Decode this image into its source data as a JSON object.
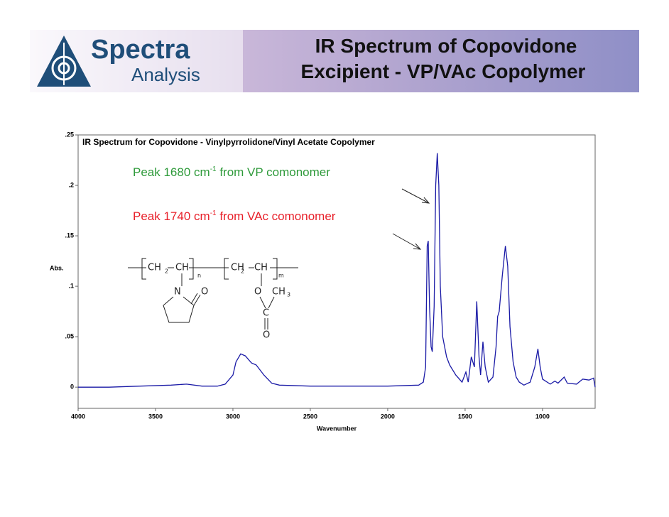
{
  "header": {
    "logo_top": "Spectra",
    "logo_bottom": "Analysis",
    "title_lines": [
      "IR Spectrum of Copovidone",
      "Excipient - VP/VAc Copolymer"
    ]
  },
  "chart_data": {
    "type": "line",
    "title": "IR Spectrum for Copovidone - Vinylpyrrolidone/Vinyl Acetate Copolymer",
    "x_label": "Wavenumber",
    "y_label": "Abs.",
    "xlim": [
      4000,
      660
    ],
    "xticks": [
      4000,
      3500,
      3000,
      2500,
      2000,
      1500,
      1000
    ],
    "ylim": [
      -0.021,
      0.25
    ],
    "yticks": [
      {
        "value": 0,
        "label": "0"
      },
      {
        "value": 0.05,
        "label": ".05"
      },
      {
        "value": 0.1,
        "label": ".1"
      },
      {
        "value": 0.15,
        "label": ".15"
      },
      {
        "value": 0.2,
        "label": ".2"
      },
      {
        "value": 0.25,
        "label": ".25"
      }
    ],
    "x": [
      4000,
      3800,
      3600,
      3400,
      3300,
      3200,
      3100,
      3050,
      3000,
      2980,
      2950,
      2920,
      2880,
      2850,
      2800,
      2750,
      2700,
      2500,
      2000,
      1800,
      1770,
      1755,
      1745,
      1738,
      1730,
      1720,
      1712,
      1700,
      1690,
      1680,
      1670,
      1660,
      1645,
      1620,
      1600,
      1560,
      1520,
      1495,
      1480,
      1460,
      1440,
      1425,
      1410,
      1400,
      1385,
      1370,
      1350,
      1320,
      1300,
      1290,
      1280,
      1260,
      1240,
      1225,
      1210,
      1190,
      1170,
      1150,
      1120,
      1080,
      1050,
      1030,
      1015,
      1000,
      950,
      920,
      900,
      860,
      840,
      780,
      740,
      700,
      670,
      660
    ],
    "series": [
      {
        "name": "Copovidone",
        "color": "#1a1aa6",
        "values": [
          0.0,
          0.0,
          0.001,
          0.002,
          0.003,
          0.001,
          0.001,
          0.003,
          0.012,
          0.025,
          0.033,
          0.031,
          0.024,
          0.022,
          0.012,
          0.004,
          0.002,
          0.001,
          0.001,
          0.002,
          0.005,
          0.02,
          0.14,
          0.145,
          0.08,
          0.04,
          0.035,
          0.08,
          0.2,
          0.232,
          0.2,
          0.1,
          0.05,
          0.03,
          0.022,
          0.012,
          0.005,
          0.015,
          0.005,
          0.03,
          0.02,
          0.085,
          0.03,
          0.012,
          0.045,
          0.02,
          0.005,
          0.01,
          0.04,
          0.07,
          0.075,
          0.11,
          0.14,
          0.12,
          0.06,
          0.025,
          0.01,
          0.005,
          0.002,
          0.005,
          0.02,
          0.038,
          0.02,
          0.008,
          0.003,
          0.006,
          0.004,
          0.01,
          0.004,
          0.003,
          0.008,
          0.007,
          0.009,
          0.0
        ]
      }
    ],
    "annotations": [
      {
        "text": "Peak 1680 cm",
        "sup": "-1",
        "rest": " from VP comonomer",
        "color": "#2e9a3a"
      },
      {
        "text": "Peak 1740 cm",
        "sup": "-1",
        "rest": " from VAc comonomer",
        "color": "#e8202a"
      }
    ]
  },
  "structure": {
    "labels": [
      "CH",
      "2",
      "CH",
      "n",
      "CH",
      "2",
      "CH",
      "m",
      "N",
      "O",
      "O",
      "CH",
      "3",
      "C",
      "O"
    ]
  }
}
